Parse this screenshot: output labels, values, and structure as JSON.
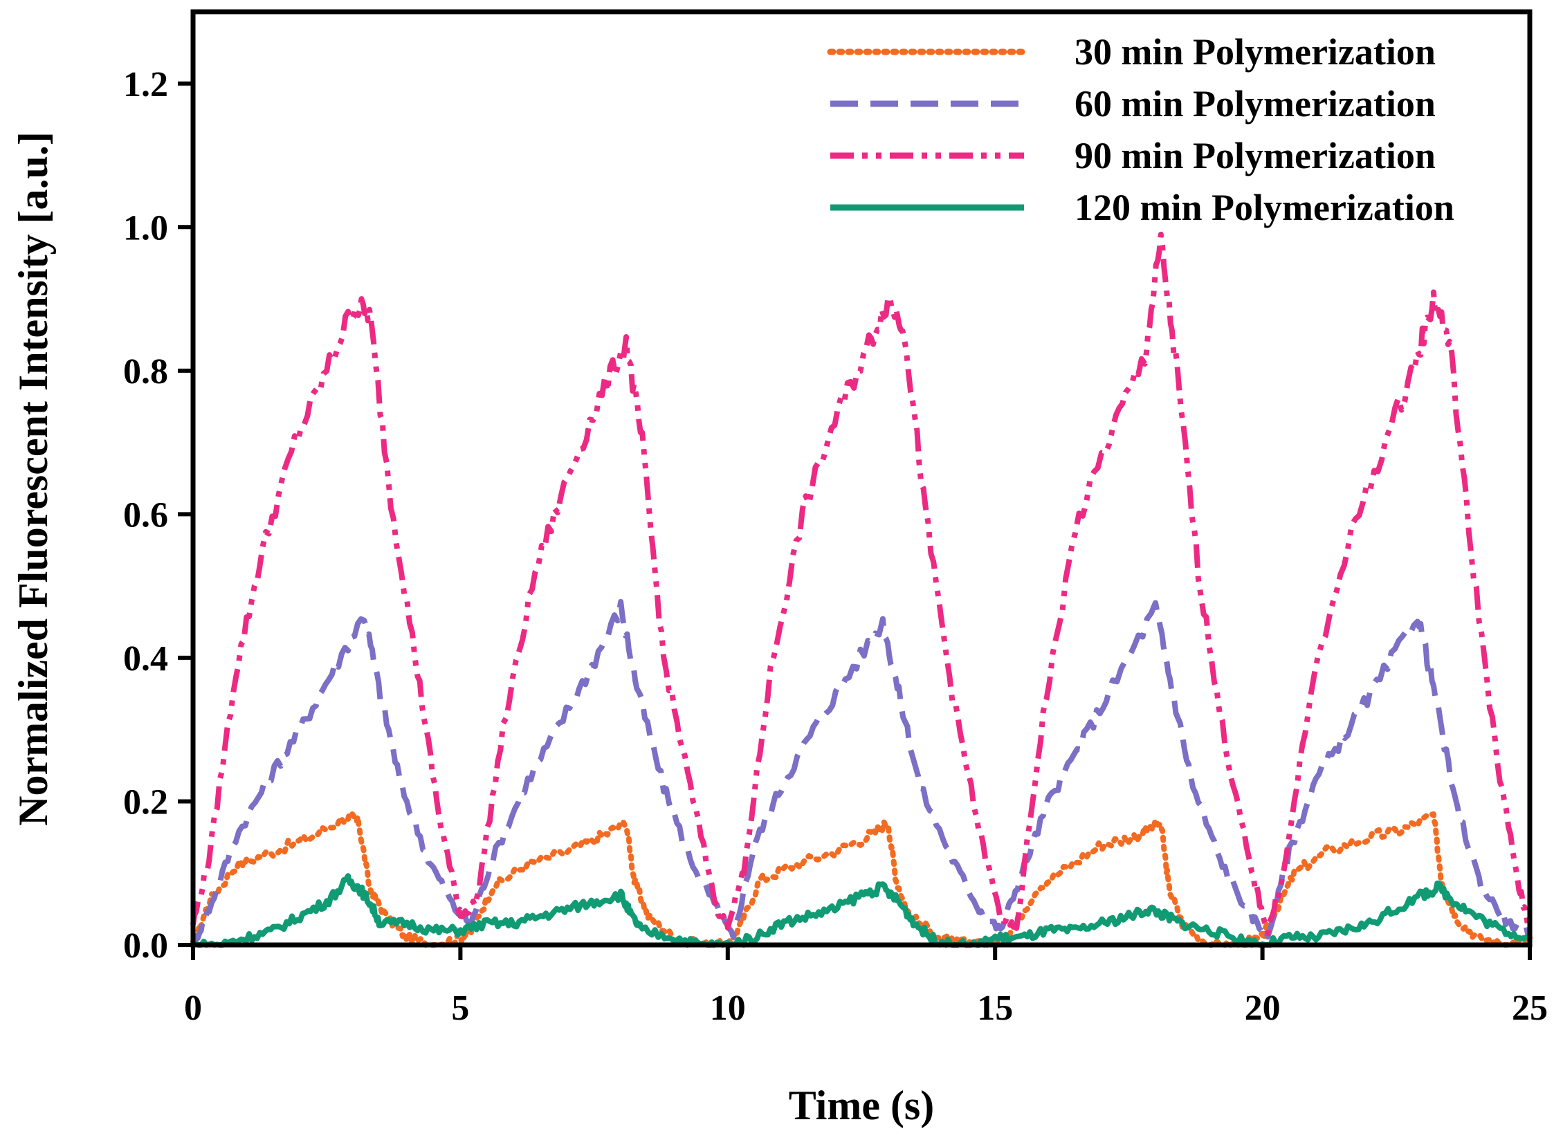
{
  "chart_data": {
    "type": "line",
    "title": "",
    "xlabel": "Time (s)",
    "ylabel": "Normalized Fluorescent Intensity [a.u.]",
    "xlim": [
      0,
      25
    ],
    "ylim": [
      0,
      1.3
    ],
    "xticks": [
      0,
      5,
      10,
      15,
      20,
      25
    ],
    "xtick_labels": [
      "0",
      "5",
      "10",
      "15",
      "20",
      "25"
    ],
    "yticks": [
      0,
      0.2,
      0.4,
      0.6,
      0.8,
      1.0,
      1.2
    ],
    "ytick_labels": [
      "0.0",
      "0.2",
      "0.4",
      "0.6",
      "0.8",
      "1.0",
      "1.2"
    ],
    "grid": false,
    "legend_position": "top-right",
    "series": [
      {
        "name": "30 min Polymerization",
        "color": "#f26b21",
        "line_style": "dotted",
        "x": [
          0,
          0.3,
          0.8,
          1.5,
          2.2,
          2.9,
          3.1,
          3.3,
          3.6,
          4.0,
          4.5,
          5.0,
          5.2,
          5.6,
          6.2,
          7.0,
          7.6,
          8.1,
          8.25,
          8.5,
          9.0,
          9.5,
          10.0,
          10.2,
          10.6,
          11.2,
          12.0,
          12.6,
          13.0,
          13.15,
          13.4,
          14.0,
          14.6,
          15.0,
          15.3,
          15.8,
          16.4,
          17.0,
          17.6,
          18.1,
          18.25,
          18.5,
          19.0,
          19.5,
          20.0,
          20.2,
          20.6,
          21.2,
          22.0,
          22.6,
          23.2,
          23.35,
          23.6,
          24.0,
          24.6,
          25.0
        ],
        "y": [
          0.0,
          0.06,
          0.11,
          0.13,
          0.15,
          0.18,
          0.17,
          0.08,
          0.04,
          0.01,
          0.0,
          0.01,
          0.02,
          0.08,
          0.11,
          0.13,
          0.15,
          0.17,
          0.09,
          0.04,
          0.01,
          0.0,
          0.0,
          0.02,
          0.09,
          0.11,
          0.13,
          0.15,
          0.17,
          0.09,
          0.04,
          0.01,
          0.0,
          0.0,
          0.02,
          0.08,
          0.11,
          0.14,
          0.15,
          0.17,
          0.08,
          0.03,
          0.0,
          0.0,
          0.01,
          0.04,
          0.1,
          0.13,
          0.15,
          0.16,
          0.18,
          0.09,
          0.04,
          0.01,
          0.0,
          0.01
        ]
      },
      {
        "name": "60 min Polymerization",
        "color": "#7b6fc6",
        "line_style": "dashed",
        "x": [
          0,
          0.3,
          0.8,
          1.4,
          2.0,
          2.6,
          3.2,
          3.5,
          3.9,
          4.4,
          4.9,
          5.2,
          5.6,
          6.2,
          6.8,
          7.4,
          8.0,
          8.3,
          8.8,
          9.3,
          9.8,
          10.1,
          10.5,
          11.0,
          11.6,
          12.2,
          12.9,
          13.2,
          13.6,
          14.2,
          14.7,
          15.1,
          15.5,
          16.0,
          16.6,
          17.2,
          18.0,
          18.3,
          18.7,
          19.2,
          19.7,
          20.1,
          20.5,
          21.0,
          21.6,
          22.2,
          22.9,
          23.2,
          23.6,
          24.1,
          24.6,
          25.0
        ],
        "y": [
          0.0,
          0.05,
          0.15,
          0.23,
          0.3,
          0.38,
          0.46,
          0.35,
          0.22,
          0.12,
          0.05,
          0.03,
          0.12,
          0.22,
          0.3,
          0.38,
          0.47,
          0.36,
          0.22,
          0.12,
          0.05,
          0.01,
          0.14,
          0.22,
          0.3,
          0.37,
          0.45,
          0.35,
          0.22,
          0.12,
          0.05,
          0.02,
          0.1,
          0.2,
          0.28,
          0.36,
          0.47,
          0.36,
          0.22,
          0.12,
          0.05,
          0.01,
          0.13,
          0.23,
          0.3,
          0.37,
          0.46,
          0.36,
          0.2,
          0.08,
          0.03,
          0.02
        ]
      },
      {
        "name": "90 min Polymerization",
        "color": "#ec2a83",
        "line_style": "dash-dot-dot",
        "x": [
          0,
          0.3,
          0.8,
          1.3,
          1.9,
          2.5,
          3.0,
          3.3,
          3.7,
          4.2,
          4.6,
          5.0,
          5.3,
          5.8,
          6.4,
          7.0,
          7.6,
          8.1,
          8.4,
          8.8,
          9.3,
          9.8,
          10.0,
          10.3,
          10.8,
          11.4,
          12.0,
          12.6,
          13.0,
          13.3,
          13.7,
          14.2,
          14.7,
          15.1,
          15.4,
          15.9,
          16.5,
          17.2,
          17.8,
          18.1,
          18.4,
          18.8,
          19.3,
          19.8,
          20.1,
          20.4,
          20.9,
          21.6,
          22.3,
          22.9,
          23.2,
          23.5,
          23.9,
          24.4,
          24.8,
          25.0
        ],
        "y": [
          0.03,
          0.12,
          0.38,
          0.55,
          0.7,
          0.8,
          0.89,
          0.88,
          0.62,
          0.38,
          0.18,
          0.04,
          0.06,
          0.3,
          0.52,
          0.65,
          0.76,
          0.84,
          0.7,
          0.4,
          0.22,
          0.05,
          0.03,
          0.1,
          0.38,
          0.6,
          0.73,
          0.83,
          0.9,
          0.86,
          0.6,
          0.35,
          0.16,
          0.04,
          0.02,
          0.32,
          0.58,
          0.72,
          0.82,
          0.98,
          0.8,
          0.52,
          0.28,
          0.1,
          0.02,
          0.1,
          0.35,
          0.56,
          0.7,
          0.82,
          0.9,
          0.84,
          0.55,
          0.25,
          0.08,
          0.02
        ]
      },
      {
        "name": "120 min Polymerization",
        "color": "#109b74",
        "line_style": "solid",
        "x": [
          0,
          0.5,
          1.0,
          1.5,
          2.0,
          2.5,
          2.9,
          3.1,
          3.3,
          3.5,
          4.0,
          4.5,
          5.0,
          5.5,
          6.0,
          6.5,
          7.0,
          7.5,
          8.0,
          8.2,
          8.4,
          9.0,
          9.5,
          10.0,
          10.5,
          11.0,
          11.5,
          12.0,
          12.5,
          12.9,
          13.2,
          13.5,
          13.8,
          14.2,
          14.7,
          15.0,
          15.5,
          16.0,
          16.5,
          17.0,
          17.5,
          17.9,
          18.2,
          18.5,
          19.0,
          19.5,
          20.0,
          20.5,
          21.0,
          21.5,
          22.0,
          22.5,
          23.0,
          23.3,
          23.6,
          24.0,
          24.5,
          25.0
        ],
        "y": [
          0.0,
          0.0,
          0.01,
          0.02,
          0.04,
          0.06,
          0.09,
          0.08,
          0.06,
          0.03,
          0.03,
          0.02,
          0.02,
          0.03,
          0.03,
          0.04,
          0.05,
          0.06,
          0.07,
          0.04,
          0.02,
          0.01,
          0.0,
          0.0,
          0.01,
          0.03,
          0.04,
          0.05,
          0.07,
          0.08,
          0.06,
          0.03,
          0.01,
          0.0,
          0.0,
          0.01,
          0.01,
          0.02,
          0.02,
          0.03,
          0.04,
          0.05,
          0.04,
          0.03,
          0.02,
          0.01,
          0.0,
          0.01,
          0.01,
          0.02,
          0.03,
          0.05,
          0.07,
          0.08,
          0.06,
          0.04,
          0.02,
          0.01
        ]
      }
    ]
  }
}
